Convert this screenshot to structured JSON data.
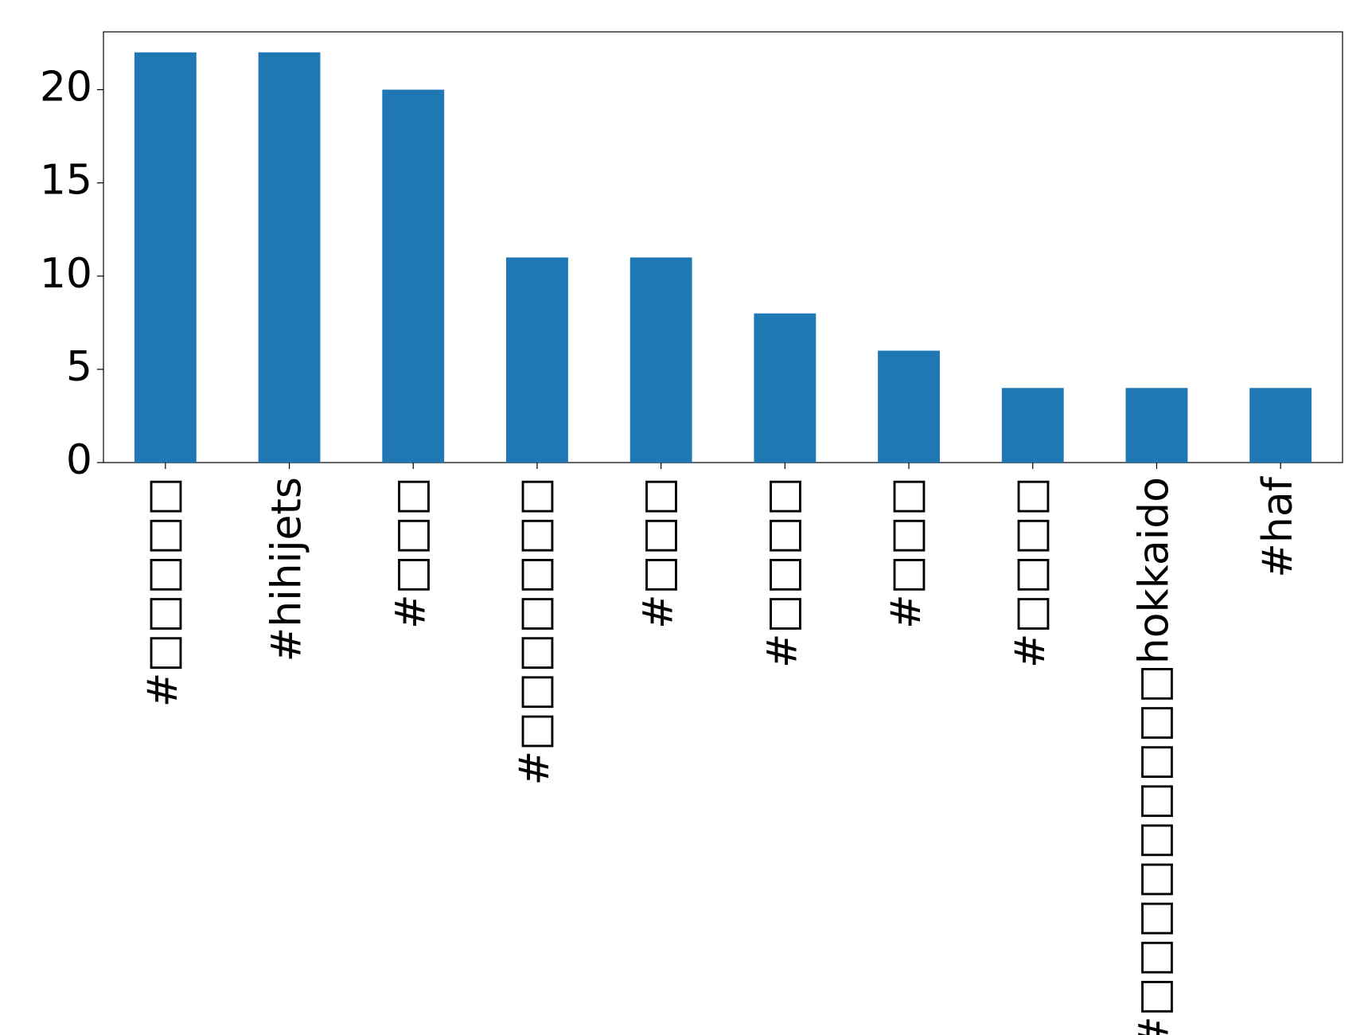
{
  "chart_data": {
    "type": "bar",
    "categories": [
      "#□□□□□",
      "#hihijets",
      "#□□□",
      "#□□□□□□□",
      "#□□□",
      "#□□□□",
      "#□□□",
      "#□□□□",
      "#□□□□□□□□□hokkaido",
      "#haf"
    ],
    "values": [
      22,
      22,
      20,
      11,
      11,
      8,
      6,
      4,
      4,
      4
    ],
    "color": "#1f77b4",
    "ylim": [
      0,
      23.1
    ],
    "yticks": [
      0,
      5,
      10,
      15,
      20
    ],
    "grid": false
  }
}
